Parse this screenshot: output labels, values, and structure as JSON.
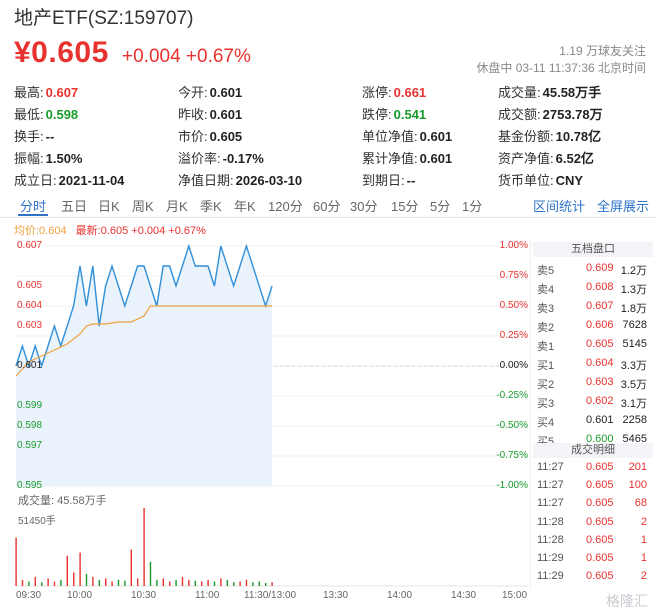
{
  "header": {
    "title": "地产ETF(SZ:159707)",
    "price": "¥0.605",
    "change": "+0.004 +0.67%",
    "followers": "1.19 万球友关注",
    "status_time": "休盘中 03-11 11:37:36 北京时间"
  },
  "stats": [
    {
      "label": "最高:",
      "value": "0.607",
      "color": "red"
    },
    {
      "label": "今开:",
      "value": "0.601",
      "color": "blk"
    },
    {
      "label": "涨停:",
      "value": "0.661",
      "color": "red"
    },
    {
      "label": "成交量:",
      "value": "45.58万手",
      "color": "blk"
    },
    {
      "label": "最低:",
      "value": "0.598",
      "color": "green"
    },
    {
      "label": "昨收:",
      "value": "0.601",
      "color": "blk"
    },
    {
      "label": "跌停:",
      "value": "0.541",
      "color": "green"
    },
    {
      "label": "成交额:",
      "value": "2753.78万",
      "color": "blk"
    },
    {
      "label": "换手:",
      "value": "--",
      "color": "blk"
    },
    {
      "label": "市价:",
      "value": "0.605",
      "color": "blk"
    },
    {
      "label": "单位净值:",
      "value": "0.601",
      "color": "blk"
    },
    {
      "label": "基金份额:",
      "value": "10.78亿",
      "color": "blk"
    },
    {
      "label": "振幅:",
      "value": "1.50%",
      "color": "blk"
    },
    {
      "label": "溢价率:",
      "value": "-0.17%",
      "color": "blk"
    },
    {
      "label": "累计净值:",
      "value": "0.601",
      "color": "blk"
    },
    {
      "label": "资产净值:",
      "value": "6.52亿",
      "color": "blk"
    },
    {
      "label": "成立日:",
      "value": "2021-11-04",
      "color": "blk"
    },
    {
      "label": "净值日期:",
      "value": "2026-03-10",
      "color": "blk"
    },
    {
      "label": "到期日:",
      "value": "--",
      "color": "blk"
    },
    {
      "label": "货币单位:",
      "value": "CNY",
      "color": "blk"
    }
  ],
  "tabs": [
    "分时",
    "五日",
    "日K",
    "周K",
    "月K",
    "季K",
    "年K",
    "120分",
    "60分",
    "30分",
    "15分",
    "5分",
    "1分"
  ],
  "active_tab": "分时",
  "links": [
    "区间统计",
    "全屏展示"
  ],
  "legend": {
    "avg": "均价:0.604",
    "latest": "最新:0.605 +0.004 +0.67%"
  },
  "order_book_title": "五档盘口",
  "order_book": [
    {
      "side": "卖5",
      "price": "0.609",
      "vol": "1.2万",
      "color": "red"
    },
    {
      "side": "卖4",
      "price": "0.608",
      "vol": "1.3万",
      "color": "red"
    },
    {
      "side": "卖3",
      "price": "0.607",
      "vol": "1.8万",
      "color": "red"
    },
    {
      "side": "卖2",
      "price": "0.606",
      "vol": "7628",
      "color": "red"
    },
    {
      "side": "卖1",
      "price": "0.605",
      "vol": "5145",
      "color": "red"
    },
    {
      "side": "买1",
      "price": "0.604",
      "vol": "3.3万",
      "color": "red"
    },
    {
      "side": "买2",
      "price": "0.603",
      "vol": "3.5万",
      "color": "red"
    },
    {
      "side": "买3",
      "price": "0.602",
      "vol": "3.1万",
      "color": "red"
    },
    {
      "side": "买4",
      "price": "0.601",
      "vol": "2258",
      "color": "blk"
    },
    {
      "side": "买5",
      "price": "0.600",
      "vol": "5465",
      "color": "green"
    }
  ],
  "trades_title": "成交明细",
  "trades": [
    {
      "time": "11:27",
      "price": "0.605",
      "vol": "201"
    },
    {
      "time": "11:27",
      "price": "0.605",
      "vol": "100"
    },
    {
      "time": "11:27",
      "price": "0.605",
      "vol": "68"
    },
    {
      "time": "11:28",
      "price": "0.605",
      "vol": "2"
    },
    {
      "time": "11:28",
      "price": "0.605",
      "vol": "1"
    },
    {
      "time": "11:29",
      "price": "0.605",
      "vol": "1"
    },
    {
      "time": "11:29",
      "price": "0.605",
      "vol": "2"
    }
  ],
  "volume_label": "成交量: 45.58万手",
  "volume_max_label": "51450手",
  "watermark": "格隆汇",
  "colors": {
    "up": "#e8322e",
    "down": "#199a2c",
    "price_line": "#2f8fd8",
    "avg_line": "#f0a03c",
    "accent": "#2f73c9"
  },
  "chart_data": {
    "type": "line",
    "title": "",
    "left_axis_ticks": [
      "0.607",
      "0.605",
      "0.604",
      "0.603",
      "0.601",
      "0.599",
      "0.598",
      "0.597",
      "0.595"
    ],
    "right_axis_ticks": [
      "1.00%",
      "0.75%",
      "0.50%",
      "0.25%",
      "0.00%",
      "-0.25%",
      "-0.50%",
      "-0.75%",
      "-1.00%"
    ],
    "x_ticks": [
      "09:30",
      "10:00",
      "10:30",
      "11:00",
      "11:30/13:00",
      "13:30",
      "14:00",
      "14:30",
      "15:00"
    ],
    "ylim": [
      0.595,
      0.607
    ],
    "prev_close": 0.601,
    "series": [
      {
        "name": "最新",
        "x": [
          "09:30",
          "09:33",
          "09:36",
          "09:39",
          "09:42",
          "09:45",
          "09:48",
          "09:51",
          "09:54",
          "09:57",
          "10:00",
          "10:03",
          "10:06",
          "10:09",
          "10:12",
          "10:15",
          "10:18",
          "10:21",
          "10:24",
          "10:27",
          "10:30",
          "10:33",
          "10:36",
          "10:39",
          "10:42",
          "10:45",
          "10:48",
          "10:51",
          "10:54",
          "10:57",
          "11:00",
          "11:03",
          "11:06",
          "11:09",
          "11:12",
          "11:15",
          "11:18",
          "11:21",
          "11:24",
          "11:27",
          "11:30"
        ],
        "values": [
          0.601,
          0.602,
          0.601,
          0.602,
          0.601,
          0.602,
          0.603,
          0.602,
          0.603,
          0.604,
          0.606,
          0.604,
          0.606,
          0.603,
          0.605,
          0.606,
          0.605,
          0.604,
          0.605,
          0.606,
          0.606,
          0.605,
          0.604,
          0.606,
          0.606,
          0.605,
          0.606,
          0.607,
          0.606,
          0.606,
          0.606,
          0.605,
          0.607,
          0.606,
          0.605,
          0.606,
          0.607,
          0.606,
          0.605,
          0.604,
          0.605
        ]
      },
      {
        "name": "均价",
        "x": [
          "09:30",
          "09:36",
          "09:42",
          "09:48",
          "09:54",
          "10:00",
          "10:03",
          "10:06",
          "10:12",
          "10:18",
          "10:24",
          "10:30",
          "10:33",
          "10:36",
          "10:45",
          "11:00",
          "11:15",
          "11:30"
        ],
        "values": [
          0.6005,
          0.6012,
          0.6015,
          0.6018,
          0.6021,
          0.6026,
          0.603,
          0.6031,
          0.6031,
          0.6032,
          0.6032,
          0.6035,
          0.604,
          0.604,
          0.604,
          0.604,
          0.604,
          0.604
        ]
      }
    ],
    "volume": {
      "x": [
        "09:30",
        "09:33",
        "09:36",
        "09:39",
        "09:42",
        "09:45",
        "09:48",
        "09:51",
        "09:54",
        "09:57",
        "10:00",
        "10:03",
        "10:06",
        "10:09",
        "10:12",
        "10:15",
        "10:18",
        "10:21",
        "10:24",
        "10:27",
        "10:30",
        "10:33",
        "10:36",
        "10:39",
        "10:42",
        "10:45",
        "10:48",
        "10:51",
        "10:54",
        "10:57",
        "11:00",
        "11:03",
        "11:06",
        "11:09",
        "11:12",
        "11:15",
        "11:18",
        "11:21",
        "11:24",
        "11:27",
        "11:30"
      ],
      "values": [
        32000,
        4000,
        3000,
        6000,
        2500,
        5000,
        3000,
        4000,
        20000,
        9000,
        22000,
        8000,
        6000,
        4000,
        5000,
        3000,
        4000,
        3500,
        24000,
        5000,
        51450,
        16000,
        4000,
        5000,
        3000,
        4000,
        6000,
        4000,
        3500,
        3000,
        4000,
        3000,
        5000,
        4000,
        2500,
        3000,
        4000,
        2500,
        3000,
        2000,
        2500
      ]
    }
  }
}
